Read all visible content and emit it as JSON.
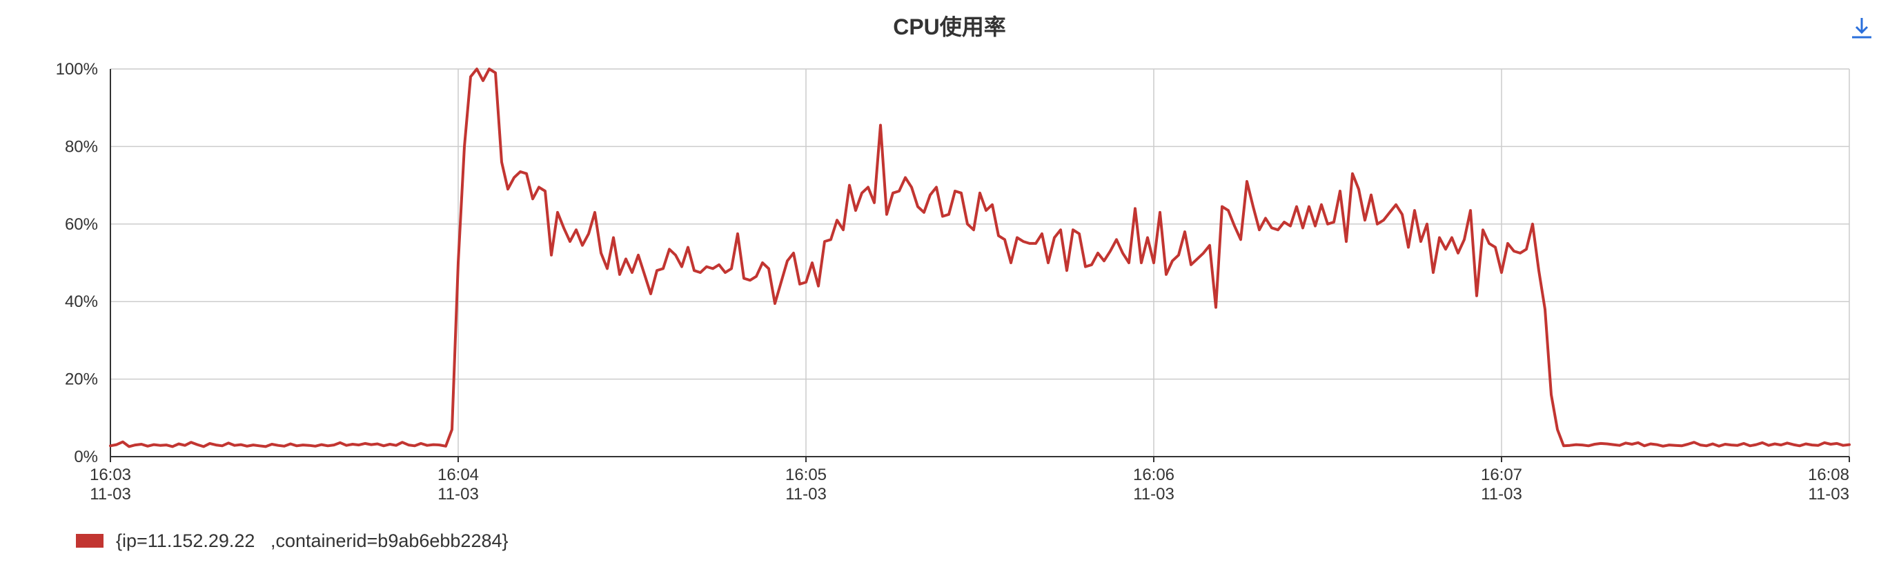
{
  "title": "CPU使用率",
  "download_icon": "download-icon",
  "colors": {
    "series": "#c23531",
    "grid": "#cccccc",
    "axis": "#333333",
    "icon": "#2a6fdb"
  },
  "chart_data": {
    "type": "line",
    "title": "CPU使用率",
    "xlabel": "",
    "ylabel": "",
    "ylim": [
      0,
      100
    ],
    "y_ticks": [
      "0%",
      "20%",
      "40%",
      "60%",
      "80%",
      "100%"
    ],
    "x_ticks": [
      {
        "time": "16:03",
        "date": "11-03"
      },
      {
        "time": "16:04",
        "date": "11-03"
      },
      {
        "time": "16:05",
        "date": "11-03"
      },
      {
        "time": "16:06",
        "date": "11-03"
      },
      {
        "time": "16:07",
        "date": "11-03"
      },
      {
        "time": "16:08",
        "date": "11-03"
      }
    ],
    "x_range": [
      "16:03",
      "16:08"
    ],
    "grid": true,
    "legend_position": "bottom-left",
    "series": [
      {
        "name": "{ip=11.152.29.22   ,containerid=b9ab6ebb2284}",
        "x_start": "16:03:00",
        "x_end": "16:08:00",
        "values": [
          2.8,
          3.1,
          3.8,
          2.6,
          3.0,
          3.2,
          2.7,
          3.1,
          2.9,
          3.0,
          2.6,
          3.3,
          2.9,
          3.7,
          3.1,
          2.6,
          3.4,
          3.0,
          2.8,
          3.5,
          2.9,
          3.1,
          2.7,
          3.0,
          2.8,
          2.6,
          3.2,
          2.9,
          2.7,
          3.3,
          2.8,
          3.0,
          2.9,
          2.7,
          3.1,
          2.8,
          3.0,
          3.6,
          2.9,
          3.2,
          3.0,
          3.4,
          3.1,
          3.3,
          2.8,
          3.2,
          2.9,
          3.7,
          3.0,
          2.8,
          3.4,
          2.9,
          3.1,
          3.0,
          2.7,
          7.0,
          50.0,
          80.0,
          98.0,
          100.0,
          97.0,
          100.0,
          99.0,
          76.0,
          69.0,
          72.0,
          73.5,
          73.0,
          66.5,
          69.5,
          68.5,
          52.0,
          63.0,
          59.0,
          55.5,
          58.5,
          54.5,
          57.5,
          63.0,
          52.5,
          48.5,
          56.5,
          47.0,
          51.0,
          47.5,
          52.0,
          47.0,
          42.0,
          48.0,
          48.5,
          53.5,
          52.0,
          49.0,
          54.0,
          48.0,
          47.5,
          49.0,
          48.5,
          49.5,
          47.5,
          48.5,
          57.5,
          46.0,
          45.5,
          46.5,
          50.0,
          48.5,
          39.5,
          45.0,
          50.5,
          52.5,
          44.5,
          45.0,
          50.0,
          44.0,
          55.5,
          56.0,
          61.0,
          58.5,
          70.0,
          63.5,
          68.0,
          69.5,
          65.5,
          85.5,
          62.5,
          68.0,
          68.5,
          72.0,
          69.5,
          64.5,
          63.0,
          67.5,
          69.5,
          62.0,
          62.5,
          68.5,
          68.0,
          60.0,
          58.5,
          68.0,
          63.5,
          65.0,
          57.0,
          56.0,
          50.0,
          56.5,
          55.5,
          55.0,
          55.0,
          57.5,
          50.0,
          56.5,
          58.5,
          48.0,
          58.5,
          57.5,
          49.0,
          49.5,
          52.5,
          50.5,
          53.0,
          56.0,
          52.5,
          50.0,
          64.0,
          50.0,
          56.5,
          50.0,
          63.0,
          47.0,
          50.5,
          52.0,
          58.0,
          49.5,
          51.0,
          52.5,
          54.5,
          38.5,
          64.5,
          63.5,
          59.5,
          56.0,
          71.0,
          64.5,
          58.5,
          61.5,
          59.0,
          58.5,
          60.5,
          59.5,
          64.5,
          59.0,
          64.5,
          59.5,
          65.0,
          60.0,
          60.5,
          68.5,
          55.5,
          73.0,
          69.0,
          61.0,
          67.5,
          60.0,
          61.0,
          63.0,
          65.0,
          62.5,
          54.0,
          63.5,
          55.5,
          60.0,
          47.5,
          56.5,
          53.5,
          56.5,
          52.5,
          56.0,
          63.5,
          41.5,
          58.5,
          55.0,
          54.0,
          47.5,
          55.0,
          53.0,
          52.5,
          53.5,
          60.0,
          48.0,
          38.0,
          16.0,
          7.0,
          2.8,
          2.9,
          3.1,
          3.0,
          2.8,
          3.2,
          3.4,
          3.3,
          3.1,
          2.9,
          3.5,
          3.2,
          3.6,
          2.8,
          3.3,
          3.1,
          2.7,
          3.0,
          2.9,
          2.8,
          3.2,
          3.7,
          3.0,
          2.8,
          3.3,
          2.7,
          3.2,
          3.0,
          2.9,
          3.4,
          2.8,
          3.1,
          3.6,
          2.9,
          3.3,
          3.0,
          3.5,
          3.1,
          2.8,
          3.3,
          3.0,
          2.9,
          3.6,
          3.2,
          3.4,
          2.9,
          3.1
        ]
      }
    ]
  }
}
